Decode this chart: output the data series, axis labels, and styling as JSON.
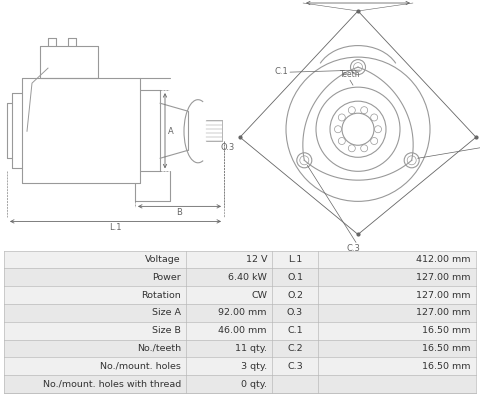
{
  "title": "",
  "table_rows": [
    [
      "Voltage",
      "12 V",
      "L.1",
      "412.00 mm"
    ],
    [
      "Power",
      "6.40 kW",
      "O.1",
      "127.00 mm"
    ],
    [
      "Rotation",
      "CW",
      "O.2",
      "127.00 mm"
    ],
    [
      "Size A",
      "92.00 mm",
      "O.3",
      "127.00 mm"
    ],
    [
      "Size B",
      "46.00 mm",
      "C.1",
      "16.50 mm"
    ],
    [
      "No./teeth",
      "11 qty.",
      "C.2",
      "16.50 mm"
    ],
    [
      "No./mount. holes",
      "3 qty.",
      "C.3",
      "16.50 mm"
    ],
    [
      "No./mount. holes with thread",
      "0 qty.",
      "",
      ""
    ]
  ],
  "table_bg_odd": "#f0f0f0",
  "table_bg_even": "#e8e8e8",
  "table_border": "#bbbbbb",
  "table_text": "#333333",
  "diagram_color": "#999999",
  "dim_color": "#666666",
  "bg_color": "#ffffff"
}
